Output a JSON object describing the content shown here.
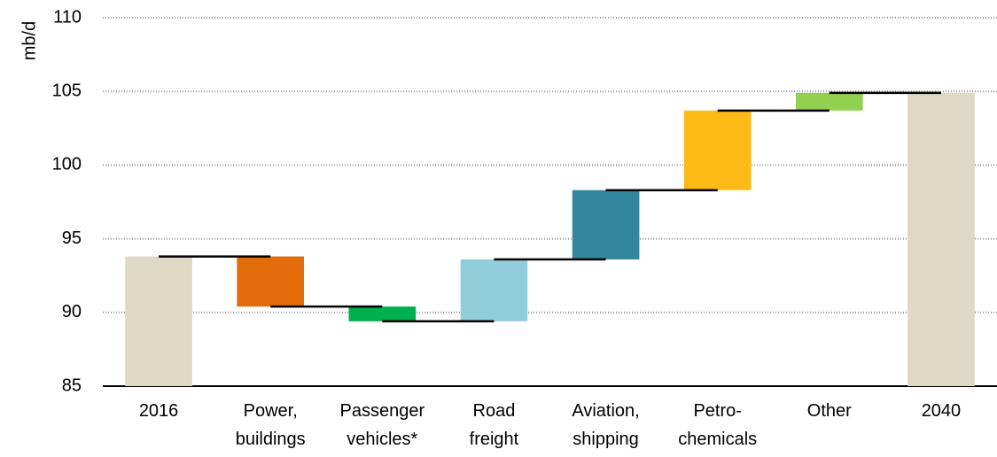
{
  "chart_data": {
    "type": "waterfall",
    "y_label": "mb/d",
    "categories": [
      [
        "2016"
      ],
      [
        "Power,",
        "buildings"
      ],
      [
        "Passenger",
        "vehicles*"
      ],
      [
        "Road",
        "freight"
      ],
      [
        "Aviation,",
        "shipping"
      ],
      [
        "Petro-",
        "chemicals"
      ],
      [
        "Other"
      ],
      [
        "2040"
      ]
    ],
    "measures": [
      "absolute",
      "relative",
      "relative",
      "relative",
      "relative",
      "relative",
      "relative",
      "absolute"
    ],
    "values": [
      93.8,
      -3.4,
      -1.0,
      4.2,
      4.7,
      5.4,
      1.2,
      104.9
    ],
    "colors": [
      "#ddd9c4",
      "#e36c0a",
      "#00b050",
      "#92cddc",
      "#31859c",
      "#fdb915",
      "#92d050",
      "#ddd9c4"
    ],
    "ylim": [
      85,
      110
    ],
    "yticks": [
      85,
      90,
      95,
      100,
      105,
      110
    ],
    "grid": true
  }
}
